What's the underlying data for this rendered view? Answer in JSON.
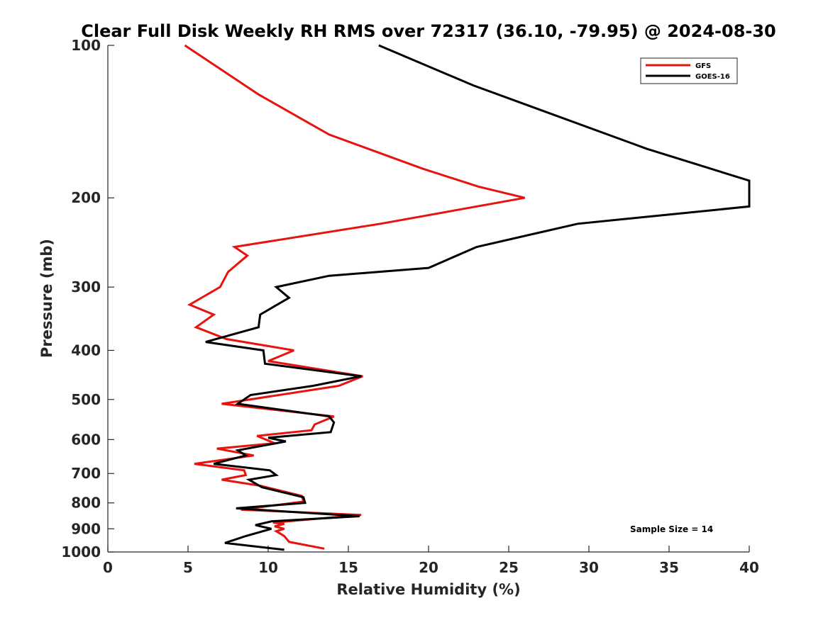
{
  "chart_data": {
    "type": "line",
    "title": "Clear Full Disk Weekly RH RMS over 72317 (36.10, -79.95) @ 2024-08-30",
    "xlabel": "Relative Humidity (%)",
    "ylabel": "Pressure (mb)",
    "xlim": [
      0,
      40
    ],
    "ylim": [
      100,
      1000
    ],
    "y_scale": "log",
    "y_reversed": true,
    "x_ticks": [
      0,
      5,
      10,
      15,
      20,
      25,
      30,
      35,
      40
    ],
    "y_ticks": [
      100,
      200,
      300,
      400,
      500,
      600,
      700,
      800,
      900,
      1000
    ],
    "grid": false,
    "legend_position": "top-right",
    "annotation": "Sample Size = 14",
    "series": [
      {
        "name": "GFS",
        "color": "#e8130f",
        "points": [
          [
            4.8,
            100
          ],
          [
            9.4,
            125
          ],
          [
            13.8,
            150
          ],
          [
            19.6,
            175
          ],
          [
            23.1,
            190
          ],
          [
            26.0,
            200
          ],
          [
            17.0,
            225
          ],
          [
            7.9,
            250
          ],
          [
            8.7,
            260
          ],
          [
            7.5,
            280
          ],
          [
            7.0,
            300
          ],
          [
            5.1,
            325
          ],
          [
            6.6,
            340
          ],
          [
            5.5,
            360
          ],
          [
            7.4,
            380
          ],
          [
            11.6,
            400
          ],
          [
            10.0,
            420
          ],
          [
            15.9,
            450
          ],
          [
            14.4,
            470
          ],
          [
            7.1,
            510
          ],
          [
            14.1,
            540
          ],
          [
            12.9,
            560
          ],
          [
            12.7,
            575
          ],
          [
            9.3,
            590
          ],
          [
            10.4,
            610
          ],
          [
            6.8,
            625
          ],
          [
            9.1,
            645
          ],
          [
            5.4,
            670
          ],
          [
            8.5,
            690
          ],
          [
            8.6,
            705
          ],
          [
            7.1,
            720
          ],
          [
            9.5,
            740
          ],
          [
            12.1,
            775
          ],
          [
            12.2,
            795
          ],
          [
            8.3,
            825
          ],
          [
            15.8,
            845
          ],
          [
            10.3,
            875
          ],
          [
            11.0,
            880
          ],
          [
            10.4,
            890
          ],
          [
            11.0,
            900
          ],
          [
            10.5,
            910
          ],
          [
            11.0,
            930
          ],
          [
            11.3,
            955
          ],
          [
            13.5,
            985
          ]
        ]
      },
      {
        "name": "GOES-16",
        "color": "#000000",
        "points": [
          [
            16.9,
            100
          ],
          [
            22.8,
            120
          ],
          [
            33.6,
            160
          ],
          [
            40.0,
            185
          ],
          [
            40.0,
            208
          ],
          [
            29.3,
            225
          ],
          [
            23.0,
            250
          ],
          [
            20.0,
            275
          ],
          [
            13.8,
            285
          ],
          [
            10.5,
            300
          ],
          [
            11.3,
            315
          ],
          [
            9.5,
            340
          ],
          [
            9.4,
            360
          ],
          [
            6.1,
            385
          ],
          [
            9.7,
            400
          ],
          [
            9.8,
            425
          ],
          [
            15.8,
            450
          ],
          [
            12.8,
            470
          ],
          [
            8.9,
            490
          ],
          [
            8.1,
            510
          ],
          [
            13.8,
            540
          ],
          [
            14.1,
            555
          ],
          [
            13.9,
            580
          ],
          [
            10.0,
            595
          ],
          [
            11.1,
            605
          ],
          [
            8.1,
            630
          ],
          [
            8.6,
            645
          ],
          [
            6.6,
            670
          ],
          [
            10.1,
            690
          ],
          [
            10.5,
            705
          ],
          [
            8.8,
            720
          ],
          [
            9.6,
            745
          ],
          [
            12.2,
            780
          ],
          [
            12.3,
            800
          ],
          [
            8.0,
            820
          ],
          [
            15.7,
            850
          ],
          [
            10.2,
            870
          ],
          [
            9.2,
            885
          ],
          [
            10.2,
            900
          ],
          [
            8.6,
            930
          ],
          [
            7.3,
            960
          ],
          [
            11.0,
            990
          ]
        ]
      }
    ]
  }
}
